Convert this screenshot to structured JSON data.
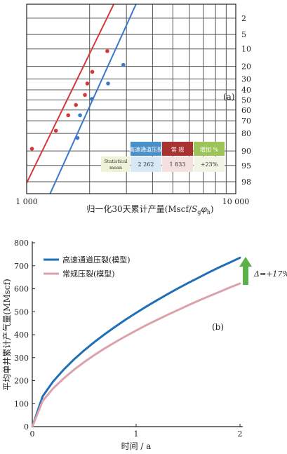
{
  "chart_data": [
    {
      "panel": "(a)",
      "type": "scatter",
      "xlabel": "归一化30天累计产量(Mscf/",
      "xlabel_math": "Sgφh",
      "xlabel_close": ")",
      "x_scale": "log",
      "xlim": [
        1000,
        10000
      ],
      "x_tick_labels": [
        "1 000",
        "10 000"
      ],
      "y_scale": "probability",
      "y_tick_labels": [
        "2",
        "5",
        "10",
        "20",
        "30",
        "40",
        "50",
        "60",
        "70",
        "80",
        "90",
        "95",
        "98"
      ],
      "y_ticks": [
        2,
        5,
        10,
        20,
        30,
        40,
        50,
        60,
        70,
        80,
        90,
        95,
        98
      ],
      "series": [
        {
          "color": "#d23a3a",
          "points": [
            [
              1060,
              89
            ],
            [
              1380,
              78
            ],
            [
              1580,
              65
            ],
            [
              1720,
              55
            ],
            [
              1900,
              45
            ],
            [
              1950,
              34
            ],
            [
              2060,
              24
            ],
            [
              2430,
              11
            ]
          ],
          "fit_line": [
            [
              970,
              98.7
            ],
            [
              3020,
              0.1
            ]
          ]
        },
        {
          "color": "#3a78c8",
          "points": [
            [
              1750,
              83
            ],
            [
              1800,
              65
            ],
            [
              2050,
              49
            ],
            [
              2450,
              34
            ],
            [
              2900,
              19
            ]
          ],
          "fit_line": [
            [
              1220,
              99.6
            ],
            [
              3820,
              0.1
            ]
          ]
        }
      ],
      "table": {
        "headers": [
          "高速通道压裂",
          "常  规",
          "增加 %"
        ],
        "header_colors": [
          "#4a90c8",
          "#a83232",
          "#9cc45a"
        ],
        "row_label": "Statistical mean",
        "values": [
          "2 262",
          "1 833",
          "+23%"
        ]
      },
      "grid": true
    },
    {
      "panel": "(b)",
      "type": "line",
      "xlabel": "时间 / a",
      "ylabel": "平均单井累计产气量(MMscf)",
      "xlim": [
        0,
        2
      ],
      "ylim": [
        0,
        800
      ],
      "x_ticks": [
        0,
        1,
        2
      ],
      "y_ticks": [
        0,
        100,
        200,
        300,
        400,
        500,
        600,
        700,
        800
      ],
      "series": [
        {
          "name": "高速通道压裂(模型)",
          "color": "#1f6fb8",
          "x": [
            0,
            0.1,
            0.2,
            0.3,
            0.4,
            0.5,
            0.6,
            0.7,
            0.8,
            0.9,
            1.0,
            1.1,
            1.2,
            1.3,
            1.4,
            1.5,
            1.6,
            1.7,
            1.8,
            1.9,
            2.0
          ],
          "y": [
            0,
            132,
            196,
            247,
            292,
            332,
            369,
            403,
            435,
            466,
            495,
            523,
            550,
            576,
            601,
            625,
            648,
            671,
            693,
            714,
            735
          ]
        },
        {
          "name": "常规压裂(模型)",
          "color": "#dba2ab",
          "x": [
            0,
            0.1,
            0.2,
            0.3,
            0.4,
            0.5,
            0.6,
            0.7,
            0.8,
            0.9,
            1.0,
            1.1,
            1.2,
            1.3,
            1.4,
            1.5,
            1.6,
            1.7,
            1.8,
            1.9,
            2.0
          ],
          "y": [
            0,
            112,
            166,
            209,
            247,
            281,
            312,
            341,
            368,
            394,
            418,
            442,
            464,
            486,
            507,
            528,
            548,
            567,
            586,
            605,
            623
          ]
        }
      ],
      "annotation": "Δ=+17%",
      "legend_position": "top-left",
      "grid": false
    }
  ]
}
